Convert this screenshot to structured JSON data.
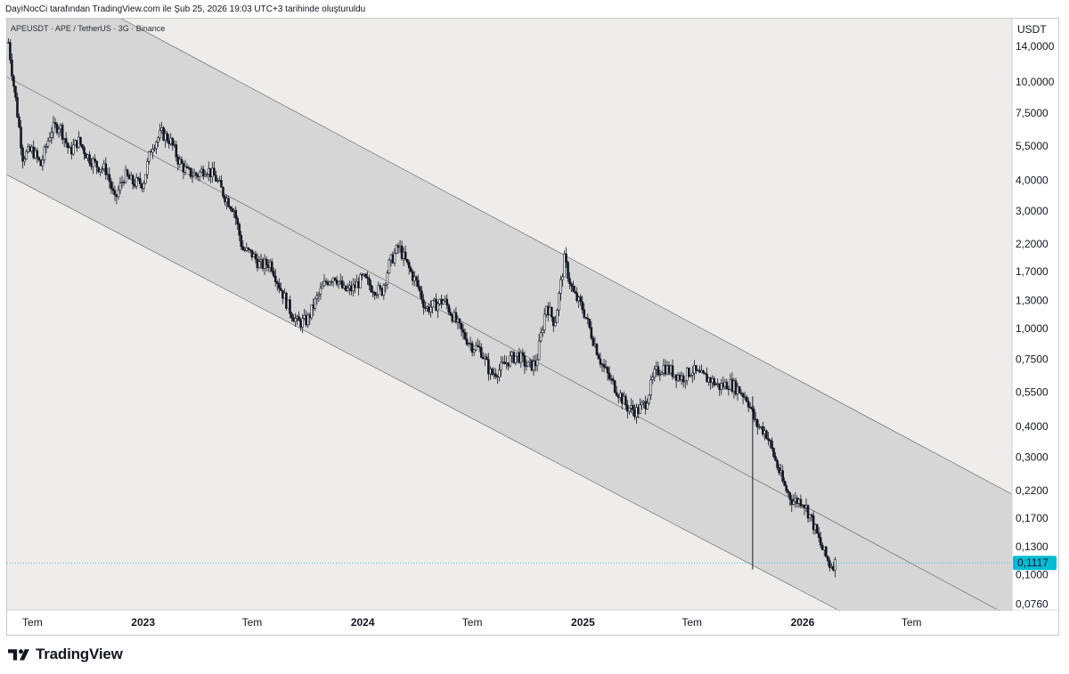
{
  "header": {
    "text": "DayiNocCi tarafından TradingView.com ile Şub 25, 2026 19:03 UTC+3 tarihinde oluşturuldu"
  },
  "chart": {
    "symbol_line": "APEUSDT · APE / TetherUS · 3G · Binance",
    "currency": "USDT",
    "last_price_label": "0,1117",
    "colors": {
      "background": "#efedeb",
      "channel_fill": "#d6d6d6",
      "candles": "#131722",
      "price_badge": "#00bcd4",
      "price_line": "#00bcd4"
    }
  },
  "footer": {
    "brand": "TradingView",
    "logo_icon": "tradingview-logo-icon"
  },
  "chart_data": {
    "type": "candlestick",
    "title": "APEUSDT · APE / TetherUS · 3G · Binance",
    "y_scale": "log",
    "ylim": [
      0.072,
      17.5
    ],
    "x_range": [
      "2022-05-20",
      "2026-12-15"
    ],
    "y_ticks": [
      {
        "label": "14,0000",
        "value": 14
      },
      {
        "label": "10,0000",
        "value": 10
      },
      {
        "label": "7,5000",
        "value": 7.5
      },
      {
        "label": "5,5000",
        "value": 5.5
      },
      {
        "label": "4,0000",
        "value": 4
      },
      {
        "label": "3,0000",
        "value": 3
      },
      {
        "label": "2,2000",
        "value": 2.2
      },
      {
        "label": "1,7000",
        "value": 1.7
      },
      {
        "label": "1,3000",
        "value": 1.3
      },
      {
        "label": "1,0000",
        "value": 1
      },
      {
        "label": "0,7500",
        "value": 0.75
      },
      {
        "label": "0,5500",
        "value": 0.55
      },
      {
        "label": "0,4000",
        "value": 0.4
      },
      {
        "label": "0,3000",
        "value": 0.3
      },
      {
        "label": "0,2200",
        "value": 0.22
      },
      {
        "label": "0,1700",
        "value": 0.17
      },
      {
        "label": "0,1300",
        "value": 0.13
      },
      {
        "label": "0,1000",
        "value": 0.1
      },
      {
        "label": "0,0760",
        "value": 0.076
      }
    ],
    "x_ticks": [
      {
        "label": "Tem",
        "date": "2022-07-01",
        "bold": false
      },
      {
        "label": "2023",
        "date": "2023-01-01",
        "bold": true
      },
      {
        "label": "Tem",
        "date": "2023-07-01",
        "bold": false
      },
      {
        "label": "2024",
        "date": "2024-01-01",
        "bold": true
      },
      {
        "label": "Tem",
        "date": "2024-07-01",
        "bold": false
      },
      {
        "label": "2025",
        "date": "2025-01-01",
        "bold": true
      },
      {
        "label": "Tem",
        "date": "2025-07-01",
        "bold": false
      },
      {
        "label": "2026",
        "date": "2026-01-01",
        "bold": true
      },
      {
        "label": "Tem",
        "date": "2026-07-01",
        "bold": false
      }
    ],
    "series": [
      {
        "points": [
          [
            "2022-05-22",
            14.5
          ],
          [
            "2022-06-01",
            9.3
          ],
          [
            "2022-06-15",
            5.0
          ],
          [
            "2022-07-01",
            5.3
          ],
          [
            "2022-07-15",
            4.6
          ],
          [
            "2022-08-01",
            6.4
          ],
          [
            "2022-08-15",
            6.7
          ],
          [
            "2022-09-01",
            5.2
          ],
          [
            "2022-09-15",
            5.8
          ],
          [
            "2022-10-01",
            5.0
          ],
          [
            "2022-10-15",
            4.6
          ],
          [
            "2022-11-01",
            4.4
          ],
          [
            "2022-11-15",
            3.3
          ],
          [
            "2022-12-01",
            4.2
          ],
          [
            "2022-12-15",
            3.9
          ],
          [
            "2023-01-01",
            3.9
          ],
          [
            "2023-01-15",
            5.5
          ],
          [
            "2023-02-01",
            6.2
          ],
          [
            "2023-02-15",
            5.8
          ],
          [
            "2023-03-01",
            4.8
          ],
          [
            "2023-03-15",
            4.3
          ],
          [
            "2023-04-01",
            4.2
          ],
          [
            "2023-04-15",
            4.5
          ],
          [
            "2023-05-01",
            4.1
          ],
          [
            "2023-05-15",
            3.5
          ],
          [
            "2023-06-01",
            3.05
          ],
          [
            "2023-06-15",
            2.1
          ],
          [
            "2023-07-01",
            2.0
          ],
          [
            "2023-07-15",
            1.8
          ],
          [
            "2023-08-01",
            1.85
          ],
          [
            "2023-08-15",
            1.5
          ],
          [
            "2023-09-01",
            1.2
          ],
          [
            "2023-09-15",
            1.05
          ],
          [
            "2023-10-01",
            1.08
          ],
          [
            "2023-10-15",
            1.3
          ],
          [
            "2023-11-01",
            1.55
          ],
          [
            "2023-11-15",
            1.65
          ],
          [
            "2023-12-01",
            1.42
          ],
          [
            "2023-12-15",
            1.45
          ],
          [
            "2024-01-01",
            1.6
          ],
          [
            "2024-01-15",
            1.48
          ],
          [
            "2024-02-01",
            1.4
          ],
          [
            "2024-02-15",
            1.85
          ],
          [
            "2024-03-01",
            2.15
          ],
          [
            "2024-03-15",
            1.8
          ],
          [
            "2024-04-01",
            1.5
          ],
          [
            "2024-04-15",
            1.2
          ],
          [
            "2024-05-01",
            1.25
          ],
          [
            "2024-05-15",
            1.3
          ],
          [
            "2024-06-01",
            1.1
          ],
          [
            "2024-06-15",
            0.95
          ],
          [
            "2024-07-01",
            0.85
          ],
          [
            "2024-07-15",
            0.82
          ],
          [
            "2024-08-01",
            0.65
          ],
          [
            "2024-08-15",
            0.68
          ],
          [
            "2024-09-01",
            0.75
          ],
          [
            "2024-09-15",
            0.78
          ],
          [
            "2024-10-01",
            0.7
          ],
          [
            "2024-10-15",
            0.72
          ],
          [
            "2024-11-01",
            1.25
          ],
          [
            "2024-11-15",
            1.05
          ],
          [
            "2024-12-01",
            1.9
          ],
          [
            "2024-12-15",
            1.4
          ],
          [
            "2025-01-01",
            1.2
          ],
          [
            "2025-01-15",
            0.95
          ],
          [
            "2025-02-01",
            0.72
          ],
          [
            "2025-02-15",
            0.62
          ],
          [
            "2025-03-01",
            0.55
          ],
          [
            "2025-03-15",
            0.48
          ],
          [
            "2025-04-01",
            0.46
          ],
          [
            "2025-04-15",
            0.5
          ],
          [
            "2025-05-01",
            0.66
          ],
          [
            "2025-05-15",
            0.7
          ],
          [
            "2025-06-01",
            0.66
          ],
          [
            "2025-06-15",
            0.63
          ],
          [
            "2025-07-01",
            0.68
          ],
          [
            "2025-07-15",
            0.64
          ],
          [
            "2025-08-01",
            0.62
          ],
          [
            "2025-08-15",
            0.58
          ],
          [
            "2025-09-01",
            0.6
          ],
          [
            "2025-09-15",
            0.57
          ],
          [
            "2025-10-01",
            0.52
          ],
          [
            "2025-10-15",
            0.41
          ],
          [
            "2025-11-01",
            0.38
          ],
          [
            "2025-11-15",
            0.3
          ],
          [
            "2025-12-01",
            0.23
          ],
          [
            "2025-12-15",
            0.2
          ],
          [
            "2026-01-01",
            0.2
          ],
          [
            "2026-01-15",
            0.17
          ],
          [
            "2026-02-01",
            0.13
          ],
          [
            "2026-02-15",
            0.11
          ],
          [
            "2026-02-25",
            0.1117
          ]
        ]
      }
    ],
    "wicks": [
      {
        "date": "2025-10-10",
        "low": 0.105,
        "high": 0.53
      }
    ],
    "channel": {
      "upper": [
        [
          "2022-05-20",
          32.0
        ],
        [
          "2026-05-10",
          0.41
        ]
      ],
      "middle": [
        [
          "2022-05-20",
          10.5
        ],
        [
          "2026-05-10",
          0.13
        ]
      ],
      "lower": [
        [
          "2022-05-20",
          4.2
        ],
        [
          "2026-05-10",
          0.0585
        ]
      ]
    },
    "last_price": 0.1117,
    "grid": false,
    "legend": "none"
  }
}
